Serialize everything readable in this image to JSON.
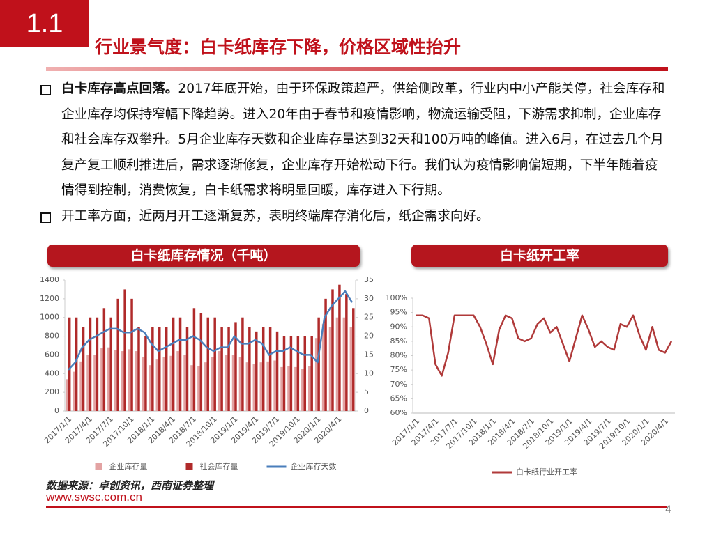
{
  "header": {
    "section": "1.1",
    "title": "行业景气度：白卡纸库存下降，价格区域性抬升"
  },
  "bullets": [
    {
      "bold": "白卡库存高点回落。",
      "text": "2017年底开始，由于环保政策趋严，供给侧改革，行业内中小产能关停，社会库存和企业库存均保持窄幅下降趋势。进入20年由于春节和疫情影响，物流运输受阻，下游需求抑制，企业库存和社会库存双攀升。5月企业库存天数和企业库存量达到32天和100万吨的峰值。进入6月，在过去几个月复产复工顺利推进后，需求逐渐修复，企业库存开始松动下行。我们认为疫情影响偏短期，下半年随着疫情得到控制，消费恢复，白卡纸需求将明显回暖，库存进入下行期。"
    },
    {
      "text": "开工率方面，近两月开工逐渐复苏，表明终端库存消化后，纸企需求向好。"
    }
  ],
  "chart_data": [
    {
      "type": "combo",
      "title": "白卡纸库存情况（千吨）",
      "categories": [
        "2017/1/1",
        null,
        null,
        "2017/4/1",
        null,
        null,
        "2017/7/1",
        null,
        null,
        "2017/10/1",
        null,
        null,
        "2018/1/1",
        null,
        null,
        "2018/4/1",
        null,
        null,
        "2018/7/1",
        null,
        null,
        "2018/10/1",
        null,
        null,
        "2019/1/1",
        null,
        null,
        "2019/4/1",
        null,
        null,
        "2019/7/1",
        null,
        null,
        "2019/10/1",
        null,
        null,
        "2020/1/1",
        null,
        null,
        "2020/4/1",
        null,
        null
      ],
      "series": [
        {
          "name": "企业库存量",
          "color": "#e3a3a3",
          "type": "bar",
          "values": [
            340,
            420,
            530,
            600,
            600,
            670,
            680,
            650,
            640,
            660,
            640,
            580,
            490,
            550,
            580,
            590,
            640,
            600,
            490,
            480,
            520,
            580,
            640,
            600,
            600,
            580,
            520,
            500,
            520,
            530,
            540,
            470,
            480,
            470,
            450,
            480,
            780,
            930,
            900,
            1000,
            1000,
            900
          ]
        },
        {
          "name": "社会库存量",
          "color": "#b02a2a",
          "type": "bar",
          "values": [
            1000,
            1000,
            900,
            1000,
            1000,
            1100,
            1000,
            1200,
            1300,
            1200,
            900,
            800,
            900,
            900,
            900,
            1000,
            1000,
            900,
            1100,
            1050,
            1000,
            1000,
            900,
            900,
            950,
            1000,
            900,
            850,
            900,
            900,
            850,
            800,
            800,
            800,
            800,
            800,
            1000,
            1200,
            1300,
            1350,
            1250,
            1100
          ]
        },
        {
          "name": "企业库存天数",
          "color": "#4a7ebb",
          "type": "line",
          "axis": "y2",
          "values": [
            11,
            13,
            17,
            19,
            20,
            21,
            22,
            22,
            21,
            21,
            22,
            21,
            18,
            16,
            17,
            18,
            19,
            19,
            20,
            19,
            17,
            16,
            17,
            17,
            20,
            18,
            18,
            19,
            18,
            15,
            16,
            16,
            17,
            16,
            15,
            15,
            13,
            25,
            28,
            30,
            32,
            29
          ]
        }
      ],
      "ylim": [
        0,
        1400
      ],
      "yticks": [
        0,
        200,
        400,
        600,
        800,
        1000,
        1200,
        1400
      ],
      "y2lim": [
        0,
        35
      ],
      "y2ticks": [
        0,
        5,
        10,
        15,
        20,
        25,
        30,
        35
      ],
      "legend": "bottom"
    },
    {
      "type": "line",
      "title": "白卡纸开工率",
      "categories": [
        "2017/1/1",
        null,
        null,
        "2017/4/1",
        null,
        null,
        "2017/7/1",
        null,
        null,
        "2017/10/1",
        null,
        null,
        "2018/1/1",
        null,
        null,
        "2018/4/1",
        null,
        null,
        "2018/7/1",
        null,
        null,
        "2018/10/1",
        null,
        null,
        "2019/1/1",
        null,
        null,
        "2019/4/1",
        null,
        null,
        "2019/7/1",
        null,
        null,
        "2019/10/1",
        null,
        null,
        "2020/1/1",
        null,
        null,
        "2020/4/1",
        null
      ],
      "series": [
        {
          "name": "白卡纸行业开工率",
          "color": "#b03a3a",
          "values": [
            94,
            94,
            93,
            77,
            73,
            81,
            94,
            94,
            94,
            94,
            90,
            84,
            77,
            89,
            94,
            93,
            86,
            85,
            86,
            91,
            93,
            88,
            90,
            84,
            78,
            86,
            94,
            89,
            83,
            85,
            83,
            82,
            91,
            90,
            94,
            87,
            82,
            90,
            82,
            81,
            85
          ]
        }
      ],
      "ylim": [
        60,
        100
      ],
      "yticks": [
        {
          "value": 60,
          "label": "60%"
        },
        {
          "value": 65,
          "label": "65%"
        },
        {
          "value": 70,
          "label": "70%"
        },
        {
          "value": 75,
          "label": "75%"
        },
        {
          "value": 80,
          "label": "80%"
        },
        {
          "value": 85,
          "label": "85%"
        },
        {
          "value": 90,
          "label": "90%"
        },
        {
          "value": 95,
          "label": "95%"
        },
        {
          "value": 100,
          "label": "100%"
        }
      ],
      "legend": "bottom"
    }
  ],
  "footer": {
    "source": "数据来源：卓创资讯，西南证券整理",
    "website": "www.swsc.com.cn",
    "page": "4"
  }
}
